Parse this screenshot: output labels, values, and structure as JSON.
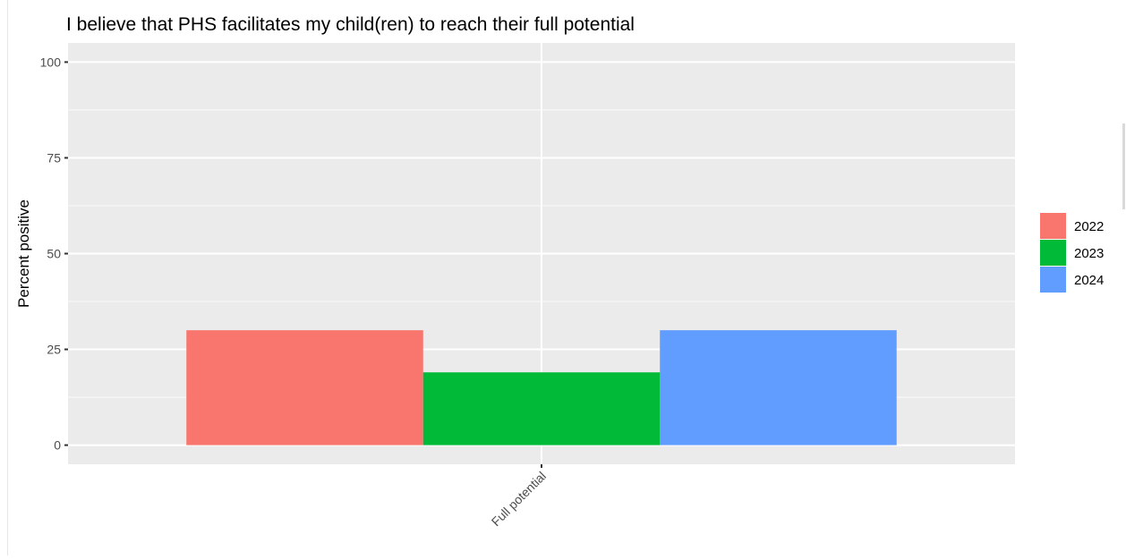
{
  "chart_data": {
    "type": "bar",
    "title": "I believe that PHS facilitates my child(ren) to reach their full potential",
    "ylabel": "Percent positive",
    "xlabel": "",
    "categories": [
      "Full potential"
    ],
    "series": [
      {
        "name": "2022",
        "values": [
          30
        ],
        "color": "#F8766D"
      },
      {
        "name": "2023",
        "values": [
          19
        ],
        "color": "#00BA38"
      },
      {
        "name": "2024",
        "values": [
          30
        ],
        "color": "#619CFF"
      }
    ],
    "ylim": [
      -5,
      105
    ],
    "yticks": [
      0,
      25,
      50,
      75,
      100
    ],
    "ytick_labels": [
      "0",
      "25",
      "50",
      "75",
      "100"
    ],
    "grid": true,
    "legend": "right",
    "panel_color": "#EBEBEB",
    "grid_color": "#FFFFFF"
  }
}
